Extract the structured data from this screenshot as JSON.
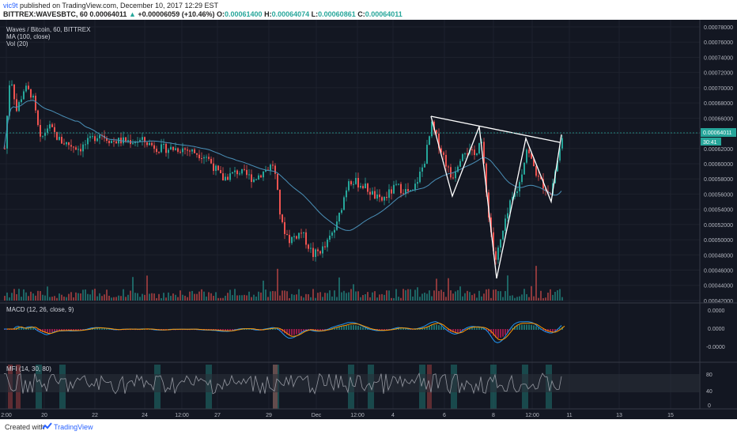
{
  "header": {
    "user": "vic9t",
    "published_text": "published on TradingView.com, December 10, 2017 12:29 EST",
    "symbol": "BITTREX:WAVESBTC, 60",
    "last": "0.00064011",
    "change_arrow": "▲",
    "change": "+0.00006059 (+10.46%)",
    "o_label": "O:",
    "o_value": "0.00061400",
    "h_label": "H:",
    "h_value": "0.00064074",
    "l_label": "L:",
    "l_value": "0.00060861",
    "c_label": "C:",
    "c_value": "0.00064011"
  },
  "legend": {
    "title": "Waves / Bitcoin, 60, BITTREX",
    "ma": "MA (100, close)",
    "vol": "Vol (20)"
  },
  "price_axis": {
    "ticks": [
      "0.00078000",
      "0.00076000",
      "0.00074000",
      "0.00072000",
      "0.00070000",
      "0.00068000",
      "0.00066000",
      "0.00064000",
      "0.00062000",
      "0.00060000",
      "0.00058000",
      "0.00056000",
      "0.00054000",
      "0.00052000",
      "0.00050000",
      "0.00048000",
      "0.00046000",
      "0.00044000",
      "0.00042000"
    ],
    "last_price": "0.00064011",
    "countdown": "30:41"
  },
  "macd": {
    "label": "MACD (12, 26, close, 9)",
    "ticks": [
      "0.0000",
      "0.0000",
      "-0.0000"
    ]
  },
  "mfi": {
    "label": "MFI (14, 30, 80)",
    "ticks": [
      "80",
      "40",
      "0"
    ]
  },
  "time_axis": {
    "labels": [
      "2:00",
      "20",
      "22",
      "24",
      "12:00",
      "27",
      "29",
      "Dec",
      "12:00",
      "4",
      "6",
      "8",
      "12:00",
      "11",
      "13",
      "15"
    ]
  },
  "footer": {
    "created": "Created with",
    "brand": "TradingView"
  },
  "colors": {
    "background": "#131722",
    "up": "#26a69a",
    "down": "#ef5350",
    "ma": "#4a90b8",
    "macd": "#2196f3",
    "signal": "#ff9800",
    "drawing": "#ffffff"
  }
}
